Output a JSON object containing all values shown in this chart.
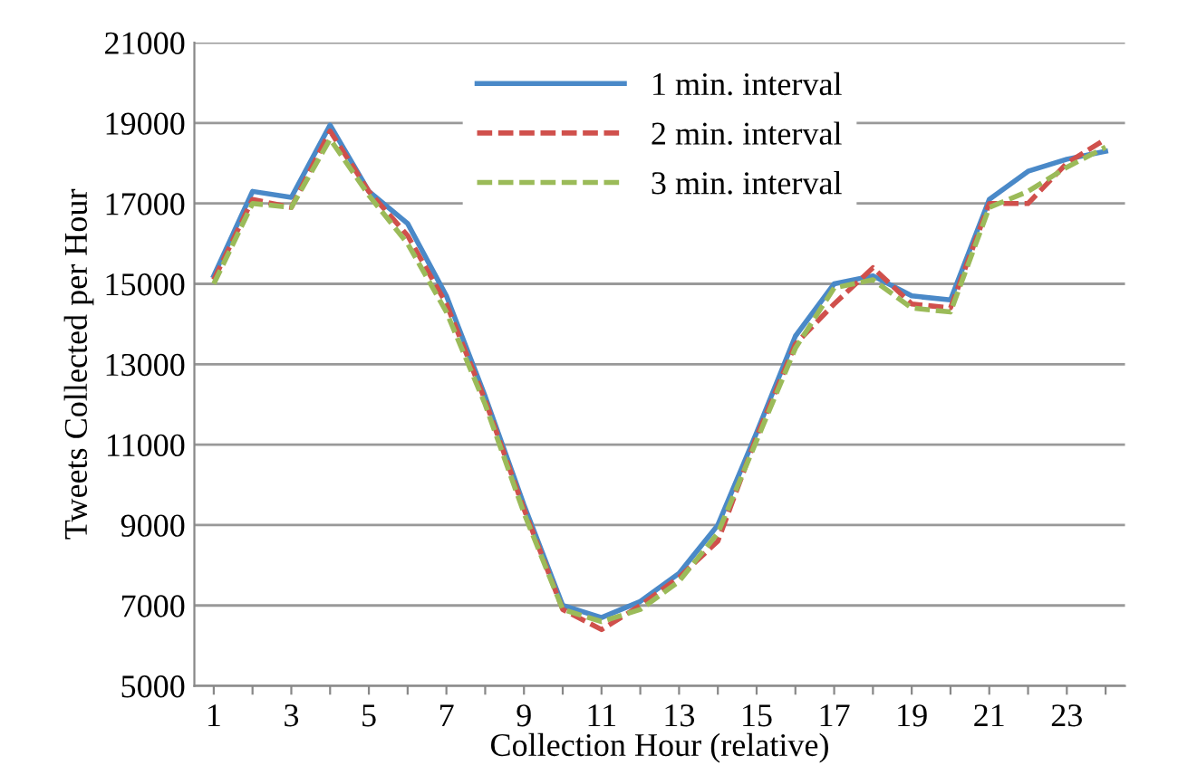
{
  "chart_data": {
    "type": "line",
    "xlabel": "Collection Hour (relative)",
    "ylabel": "Tweets Collected per Hour",
    "categories": [
      "1",
      null,
      "3",
      null,
      "5",
      null,
      "7",
      null,
      "9",
      null,
      "11",
      null,
      "13",
      null,
      "15",
      null,
      "17",
      null,
      "19",
      null,
      "21",
      null,
      "23",
      null
    ],
    "series": [
      {
        "name": "1 min. interval",
        "color": "#4a89c8",
        "line_style": "solid",
        "values": [
          15200,
          17300,
          17150,
          18950,
          17300,
          16500,
          14700,
          12200,
          9500,
          7000,
          6700,
          7100,
          7800,
          9000,
          11300,
          13700,
          15000,
          15200,
          14700,
          14600,
          17100,
          17800,
          18100,
          18300
        ]
      },
      {
        "name": "2 min. interval",
        "color": "#d0504c",
        "line_style": "dashed",
        "values": [
          15100,
          17100,
          16900,
          18800,
          17300,
          16200,
          14500,
          12100,
          9400,
          6900,
          6400,
          7000,
          7700,
          8600,
          11200,
          13500,
          14500,
          15400,
          14500,
          14400,
          17000,
          17000,
          18000,
          18600
        ]
      },
      {
        "name": "3 min. interval",
        "color": "#9bbb59",
        "line_style": "dashed",
        "values": [
          15000,
          17000,
          16900,
          18600,
          17200,
          16000,
          14300,
          12000,
          9300,
          6900,
          6600,
          6900,
          7600,
          8800,
          11100,
          13400,
          14900,
          15100,
          14400,
          14300,
          16900,
          17300,
          17900,
          18400
        ]
      }
    ],
    "ylim": [
      5000,
      21000
    ],
    "yticks": [
      5000,
      7000,
      9000,
      11000,
      13000,
      15000,
      17000,
      19000,
      21000
    ],
    "grid": "y",
    "legend": "top",
    "marker": "none"
  }
}
